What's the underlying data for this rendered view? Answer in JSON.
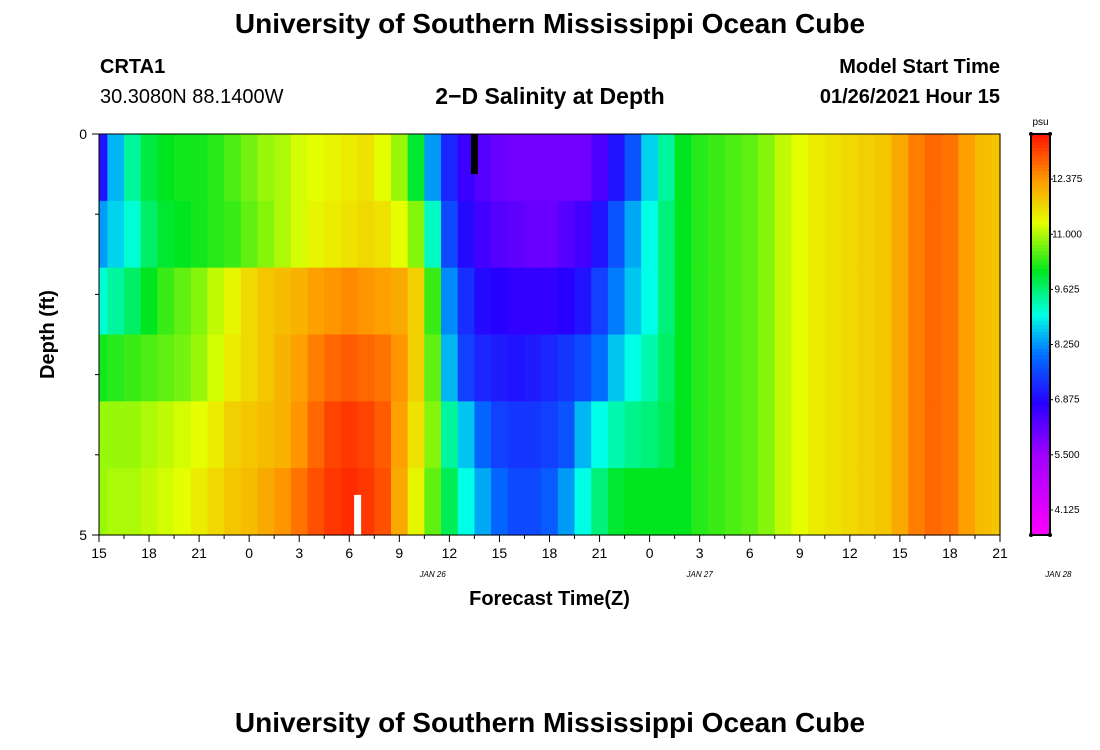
{
  "header": {
    "main_title": "University of Southern Mississippi Ocean Cube",
    "station_id": "CRTA1",
    "coordinates": "30.3080N 88.1400W",
    "chart_title": "2−D Salinity at Depth",
    "model_start_label": "Model Start Time",
    "model_start_value": "01/26/2021 Hour 15"
  },
  "footer": {
    "title": "University of Southern Mississippi Ocean Cube"
  },
  "chart_data": {
    "type": "heatmap",
    "xlabel": "Forecast Time(Z)",
    "ylabel": "Depth (ft)",
    "x_tick_labels": [
      "15",
      "18",
      "21",
      "0",
      "3",
      "6",
      "9",
      "12",
      "15",
      "18",
      "21",
      "0",
      "3",
      "6",
      "9",
      "12",
      "15",
      "18",
      "21"
    ],
    "date_labels": [
      {
        "text": "JAN 26",
        "at_hour": 20
      },
      {
        "text": "JAN 27",
        "at_hour": 36
      },
      {
        "text": "JAN 28",
        "at_hour": 57.5
      }
    ],
    "x_range_hours": [
      0,
      54
    ],
    "x_start_time": "01/26/2021 15Z",
    "y_tick_labels": [
      "0",
      "5"
    ],
    "ylim": [
      0,
      5
    ],
    "y_minor_ticks": [
      1,
      2,
      3,
      4
    ],
    "depth_levels": [
      0,
      1,
      2,
      3,
      4,
      5
    ],
    "colorbar": {
      "unit": "psu",
      "min": 3.5,
      "max": 13.5,
      "tick_values": [
        4.125,
        5.5,
        6.875,
        8.25,
        9.625,
        11.0,
        12.375
      ],
      "tick_labels": [
        "4.125",
        "5.500",
        "6.875",
        "8.250",
        "9.625",
        "11.000",
        "12.375"
      ]
    },
    "salinity_profile": {
      "hours": [
        0,
        1,
        2,
        3,
        4,
        5,
        6,
        7,
        8,
        9,
        10,
        11,
        12,
        13,
        14,
        15,
        16,
        17,
        18,
        19,
        20,
        21,
        22,
        23,
        24,
        25,
        26,
        27,
        28,
        29,
        30,
        31,
        32,
        33,
        34,
        35,
        36,
        37,
        38,
        39,
        40,
        41,
        42,
        43,
        44,
        45,
        46,
        47,
        48,
        49,
        50,
        51,
        52,
        53,
        54
      ],
      "layers": [
        [
          7.0,
          8.5,
          9.4,
          9.9,
          10.1,
          10.2,
          10.2,
          10.3,
          10.5,
          10.7,
          10.9,
          11.0,
          11.2,
          11.3,
          11.4,
          11.5,
          11.6,
          11.3,
          10.9,
          10.0,
          8.3,
          7.2,
          6.6,
          6.3,
          6.1,
          6.0,
          6.0,
          6.0,
          6.0,
          6.0,
          6.4,
          7.0,
          7.7,
          8.7,
          9.4,
          10.1,
          10.3,
          10.4,
          10.5,
          10.6,
          10.8,
          11.1,
          11.3,
          11.5,
          11.6,
          11.7,
          11.8,
          11.9,
          12.2,
          12.6,
          12.8,
          12.7,
          12.3,
          12.0,
          11.9
        ],
        [
          8.3,
          8.7,
          9.1,
          9.7,
          10.0,
          10.1,
          10.2,
          10.3,
          10.4,
          10.6,
          10.8,
          11.0,
          11.2,
          11.4,
          11.5,
          11.6,
          11.7,
          11.6,
          11.3,
          10.8,
          9.2,
          7.6,
          6.9,
          6.5,
          6.3,
          6.2,
          6.1,
          6.1,
          6.3,
          6.5,
          7.0,
          7.7,
          8.4,
          9.0,
          9.6,
          10.1,
          10.3,
          10.4,
          10.5,
          10.6,
          10.8,
          11.1,
          11.3,
          11.5,
          11.6,
          11.7,
          11.8,
          11.9,
          12.2,
          12.6,
          12.8,
          12.7,
          12.3,
          12.0,
          11.9
        ],
        [
          9.1,
          9.4,
          9.7,
          10.1,
          10.4,
          10.6,
          10.8,
          11.1,
          11.4,
          11.7,
          11.9,
          12.0,
          12.1,
          12.3,
          12.4,
          12.5,
          12.4,
          12.3,
          12.2,
          11.8,
          10.4,
          8.2,
          7.3,
          6.9,
          6.8,
          6.7,
          6.7,
          6.7,
          6.8,
          7.0,
          7.5,
          8.1,
          8.6,
          9.0,
          9.6,
          10.1,
          10.3,
          10.4,
          10.5,
          10.6,
          10.8,
          11.1,
          11.3,
          11.5,
          11.6,
          11.7,
          11.8,
          11.9,
          12.2,
          12.6,
          12.8,
          12.7,
          12.3,
          12.0,
          11.9
        ],
        [
          10.2,
          10.3,
          10.4,
          10.5,
          10.6,
          10.7,
          10.9,
          11.2,
          11.5,
          11.7,
          11.9,
          12.1,
          12.3,
          12.6,
          12.8,
          12.9,
          12.8,
          12.7,
          12.4,
          11.8,
          10.6,
          8.5,
          7.5,
          7.2,
          7.1,
          7.0,
          7.1,
          7.2,
          7.4,
          7.6,
          8.0,
          8.6,
          9.0,
          9.3,
          9.7,
          10.1,
          10.3,
          10.4,
          10.5,
          10.6,
          10.8,
          11.1,
          11.3,
          11.5,
          11.6,
          11.7,
          11.8,
          11.9,
          12.2,
          12.6,
          12.8,
          12.7,
          12.3,
          12.0,
          11.9
        ],
        [
          10.9,
          10.9,
          10.9,
          11.0,
          11.1,
          11.2,
          11.3,
          11.5,
          11.8,
          11.9,
          12.0,
          12.1,
          12.4,
          12.8,
          13.1,
          13.2,
          13.1,
          12.9,
          12.3,
          11.6,
          10.8,
          9.4,
          8.6,
          7.9,
          7.5,
          7.4,
          7.4,
          7.5,
          7.7,
          8.5,
          9.0,
          9.3,
          9.5,
          9.6,
          9.8,
          10.1,
          10.3,
          10.4,
          10.5,
          10.6,
          10.8,
          11.1,
          11.3,
          11.5,
          11.6,
          11.7,
          11.8,
          11.9,
          12.2,
          12.6,
          12.8,
          12.7,
          12.3,
          12.0,
          11.9
        ],
        [
          10.9,
          11.0,
          11.0,
          11.1,
          11.2,
          11.3,
          11.5,
          11.7,
          11.9,
          12.0,
          12.2,
          12.4,
          12.7,
          13.0,
          13.2,
          13.3,
          13.2,
          13.0,
          12.2,
          11.4,
          10.6,
          9.8,
          9.0,
          8.4,
          7.9,
          7.6,
          7.6,
          7.8,
          8.3,
          9.0,
          9.6,
          10.0,
          10.1,
          10.1,
          10.1,
          10.1,
          10.3,
          10.4,
          10.5,
          10.6,
          10.8,
          11.1,
          11.3,
          11.5,
          11.6,
          11.7,
          11.8,
          11.9,
          12.2,
          12.6,
          12.8,
          12.7,
          12.3,
          12.0,
          11.9
        ]
      ]
    },
    "markers": [
      {
        "color": "#000000",
        "at_hour": 22.5,
        "depth_from": 0,
        "depth_to": 0.5
      },
      {
        "color": "#ffffff",
        "at_hour": 15.5,
        "depth_from": 4.5,
        "depth_to": 5
      }
    ]
  }
}
